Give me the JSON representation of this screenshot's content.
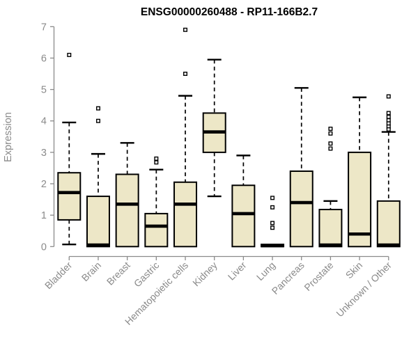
{
  "chart_data": {
    "type": "boxplot",
    "title": "ENSG00000260488 - RP11-166B2.7",
    "ylabel": "Expression",
    "ylim": [
      0,
      7
    ],
    "yticks": [
      0,
      1,
      2,
      3,
      4,
      5,
      6,
      7
    ],
    "grid": false,
    "legend": "none",
    "categories": [
      "Bladder",
      "Brain",
      "Breast",
      "Gastric",
      "Hematopoietic cells",
      "Kidney",
      "Liver",
      "Lung",
      "Pancreas",
      "Prostate",
      "Skin",
      "Unknown / Other"
    ],
    "series": [
      {
        "category": "Bladder",
        "whisker_low": 0.07,
        "q1": 0.85,
        "median": 1.72,
        "q3": 2.35,
        "whisker_high": 3.95,
        "outliers": [
          6.1
        ]
      },
      {
        "category": "Brain",
        "whisker_low": 0,
        "q1": 0,
        "median": 0.05,
        "q3": 1.6,
        "whisker_high": 2.95,
        "outliers": [
          4.4,
          4.0
        ]
      },
      {
        "category": "Breast",
        "whisker_low": 0,
        "q1": 0,
        "median": 1.35,
        "q3": 2.3,
        "whisker_high": 3.3,
        "outliers": []
      },
      {
        "category": "Gastric",
        "whisker_low": 0,
        "q1": 0,
        "median": 0.65,
        "q3": 1.05,
        "whisker_high": 2.45,
        "outliers": [
          2.8,
          2.68
        ]
      },
      {
        "category": "Hematopoietic cells",
        "whisker_low": 0,
        "q1": 0,
        "median": 1.35,
        "q3": 2.05,
        "whisker_high": 4.8,
        "outliers": [
          6.9,
          5.5
        ]
      },
      {
        "category": "Kidney",
        "whisker_low": 1.6,
        "q1": 3.0,
        "median": 3.65,
        "q3": 4.25,
        "whisker_high": 5.95,
        "outliers": []
      },
      {
        "category": "Liver",
        "whisker_low": 0,
        "q1": 0,
        "median": 1.05,
        "q3": 1.95,
        "whisker_high": 2.9,
        "outliers": []
      },
      {
        "category": "Lung",
        "whisker_low": 0,
        "q1": 0,
        "median": 0.03,
        "q3": 0.07,
        "whisker_high": 0.07,
        "outliers": [
          1.55,
          1.25,
          0.75,
          0.6
        ]
      },
      {
        "category": "Pancreas",
        "whisker_low": 0,
        "q1": 0,
        "median": 1.4,
        "q3": 2.4,
        "whisker_high": 5.05,
        "outliers": []
      },
      {
        "category": "Prostate",
        "whisker_low": 0,
        "q1": 0,
        "median": 0.05,
        "q3": 1.18,
        "whisker_high": 1.45,
        "outliers": [
          3.75,
          3.6,
          3.28,
          3.12
        ]
      },
      {
        "category": "Skin",
        "whisker_low": 0,
        "q1": 0,
        "median": 0.4,
        "q3": 3.0,
        "whisker_high": 4.75,
        "outliers": []
      },
      {
        "category": "Unknown / Other",
        "whisker_low": 0,
        "q1": 0,
        "median": 0.05,
        "q3": 1.45,
        "whisker_high": 3.65,
        "outliers": [
          4.78,
          4.25,
          4.13,
          4.02,
          3.92,
          3.82,
          3.73
        ]
      }
    ],
    "colors": {
      "box_fill": "#EDE7C7",
      "box_stroke": "#000000",
      "median": "#000000",
      "axis": "#8a8a8a",
      "title": "#000000",
      "background": "#ffffff"
    }
  }
}
